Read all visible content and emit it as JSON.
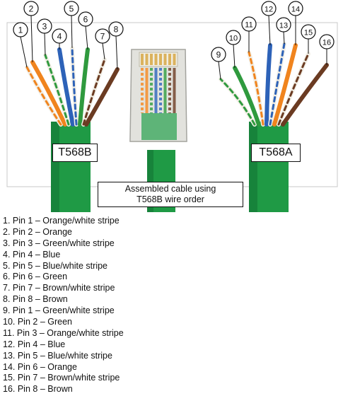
{
  "callouts": [
    "1",
    "2",
    "3",
    "4",
    "5",
    "6",
    "7",
    "8",
    "9",
    "10",
    "11",
    "12",
    "13",
    "14",
    "15",
    "16"
  ],
  "labels": {
    "left_cable": "T568B",
    "right_cable": "T568A"
  },
  "caption": {
    "line1": "Assembled cable using",
    "line2": "T568B wire order"
  },
  "legend": [
    "1. Pin 1 – Orange/white stripe",
    "2. Pin 2 – Orange",
    "3. Pin 3 – Green/white stripe",
    "4. Pin 4 – Blue",
    "5. Pin 5 – Blue/white stripe",
    "6. Pin 6 – Green",
    "7. Pin 7 – Brown/white stripe",
    "8. Pin 8 – Brown",
    "9. Pin 1 – Green/white stripe",
    "10. Pin 2 – Green",
    "11. Pin 3 – Orange/white stripe",
    "12. Pin 4 – Blue",
    "13. Pin 5 – Blue/white stripe",
    "14. Pin 6 – Orange",
    "15. Pin 7 – Brown/white stripe",
    "16. Pin 8 – Brown"
  ],
  "colors": {
    "jacket": "#1f9a45",
    "orange": "#f0841e",
    "green": "#2f9a3e",
    "blue": "#2d62b8",
    "brown": "#6b3b22",
    "white": "#f2efe6",
    "connector": "#dcdcd6",
    "contacts": "#d4a23a"
  }
}
